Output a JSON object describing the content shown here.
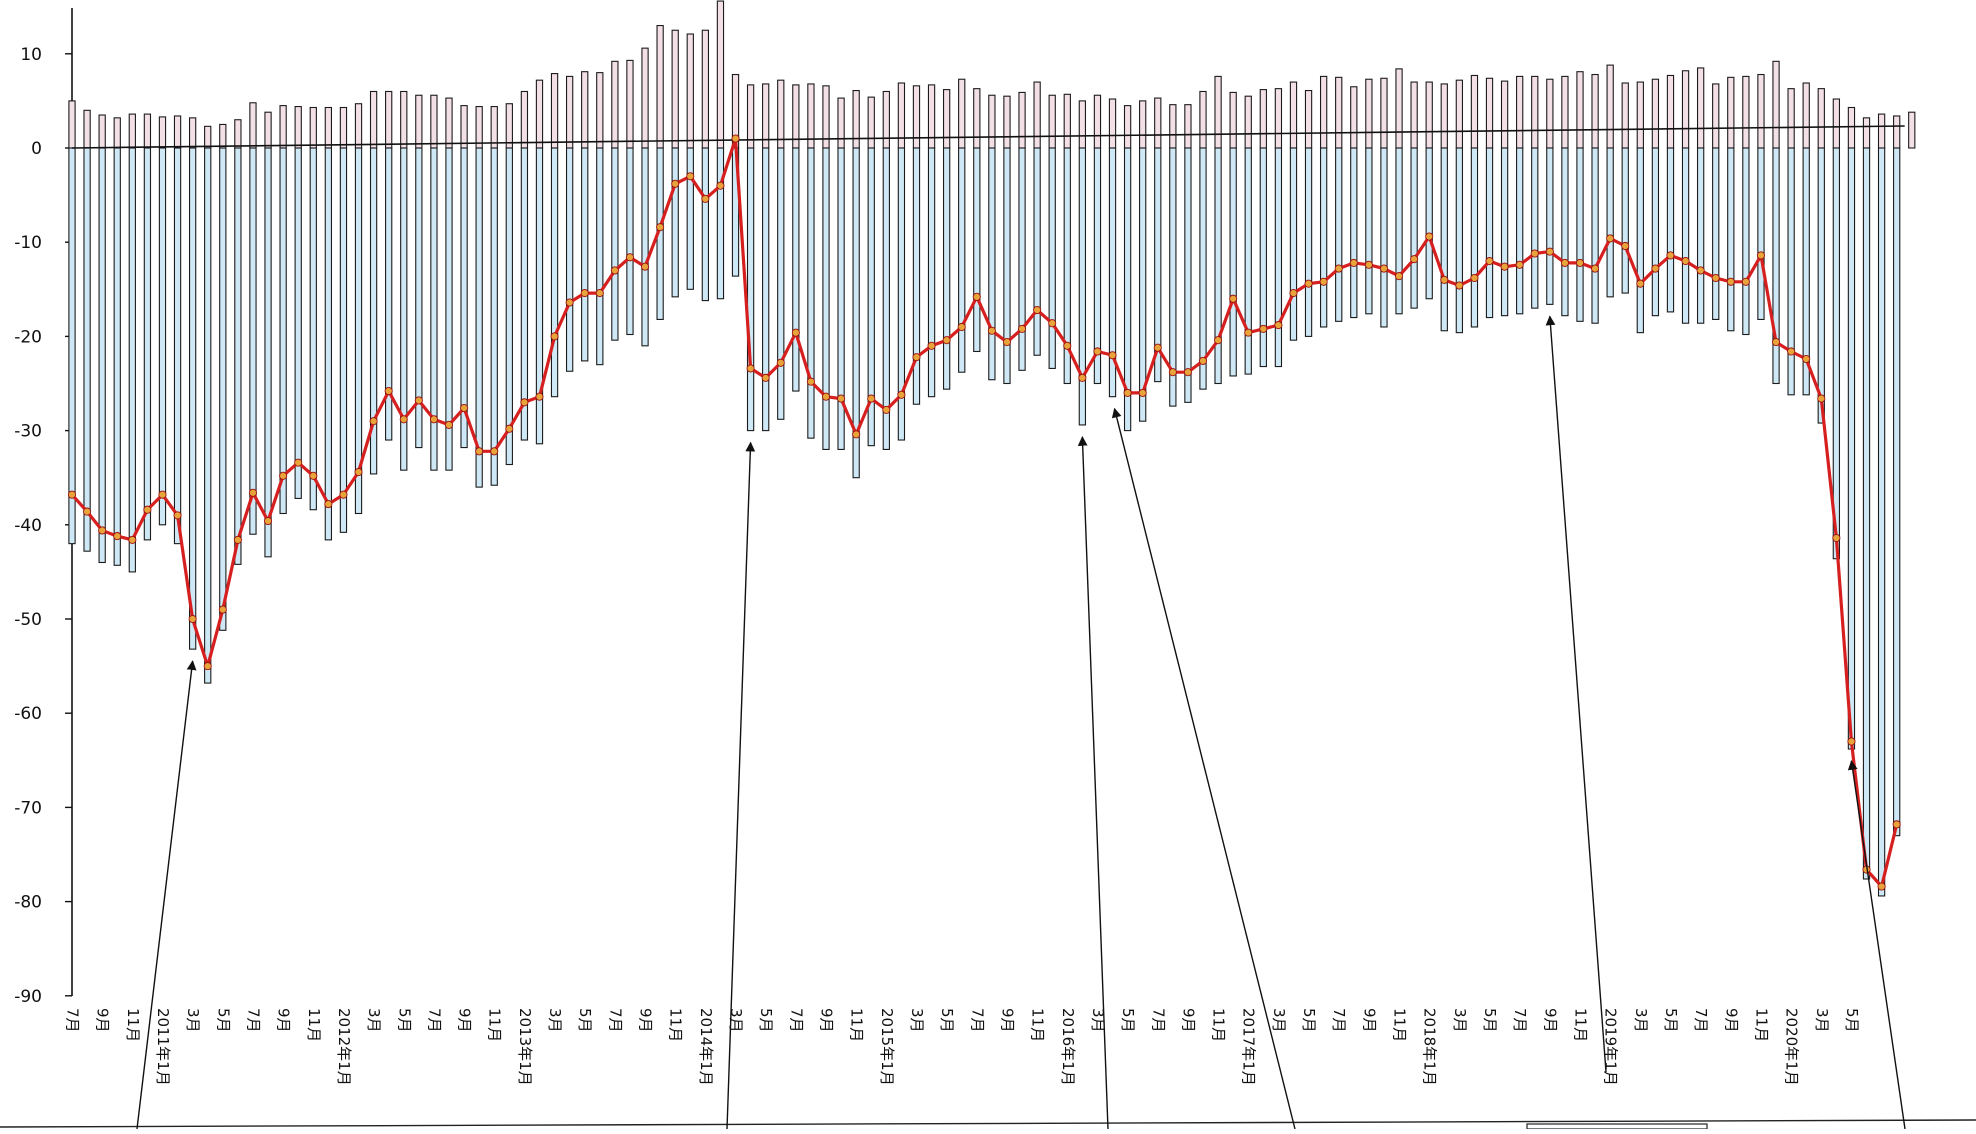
{
  "chart_data": {
    "type": "bar",
    "title": "",
    "xlabel": "",
    "ylabel": "",
    "ylim": [
      -90,
      15
    ],
    "y_ticks": [
      10,
      0,
      -10,
      -20,
      -30,
      -40,
      -50,
      -60,
      -70,
      -80,
      -90
    ],
    "grid": false,
    "x_tick_labels": [
      {
        "i": 0,
        "text": "7月"
      },
      {
        "i": 2,
        "text": "9月"
      },
      {
        "i": 4,
        "text": "11月"
      },
      {
        "i": 6,
        "text": "2011年1月"
      },
      {
        "i": 8,
        "text": "3月"
      },
      {
        "i": 10,
        "text": "5月"
      },
      {
        "i": 12,
        "text": "7月"
      },
      {
        "i": 14,
        "text": "9月"
      },
      {
        "i": 16,
        "text": "11月"
      },
      {
        "i": 18,
        "text": "2012年1月"
      },
      {
        "i": 20,
        "text": "3月"
      },
      {
        "i": 22,
        "text": "5月"
      },
      {
        "i": 24,
        "text": "7月"
      },
      {
        "i": 26,
        "text": "9月"
      },
      {
        "i": 28,
        "text": "11月"
      },
      {
        "i": 30,
        "text": "2013年1月"
      },
      {
        "i": 32,
        "text": "3月"
      },
      {
        "i": 34,
        "text": "5月"
      },
      {
        "i": 36,
        "text": "7月"
      },
      {
        "i": 38,
        "text": "9月"
      },
      {
        "i": 40,
        "text": "11月"
      },
      {
        "i": 42,
        "text": "2014年1月"
      },
      {
        "i": 44,
        "text": "3月"
      },
      {
        "i": 46,
        "text": "5月"
      },
      {
        "i": 48,
        "text": "7月"
      },
      {
        "i": 50,
        "text": "9月"
      },
      {
        "i": 52,
        "text": "11月"
      },
      {
        "i": 54,
        "text": "2015年1月"
      },
      {
        "i": 56,
        "text": "3月"
      },
      {
        "i": 58,
        "text": "5月"
      },
      {
        "i": 60,
        "text": "7月"
      },
      {
        "i": 62,
        "text": "9月"
      },
      {
        "i": 64,
        "text": "11月"
      },
      {
        "i": 66,
        "text": "2016年1月"
      },
      {
        "i": 68,
        "text": "3月"
      },
      {
        "i": 70,
        "text": "5月"
      },
      {
        "i": 72,
        "text": "7月"
      },
      {
        "i": 74,
        "text": "9月"
      },
      {
        "i": 76,
        "text": "11月"
      },
      {
        "i": 78,
        "text": "2017年1月"
      },
      {
        "i": 80,
        "text": "3月"
      },
      {
        "i": 82,
        "text": "5月"
      },
      {
        "i": 84,
        "text": "7月"
      },
      {
        "i": 86,
        "text": "9月"
      },
      {
        "i": 88,
        "text": "11月"
      },
      {
        "i": 90,
        "text": "2018年1月"
      },
      {
        "i": 92,
        "text": "3月"
      },
      {
        "i": 94,
        "text": "5月"
      },
      {
        "i": 96,
        "text": "7月"
      },
      {
        "i": 98,
        "text": "9月"
      },
      {
        "i": 100,
        "text": "11月"
      },
      {
        "i": 102,
        "text": "2019年1月"
      },
      {
        "i": 104,
        "text": "3月"
      },
      {
        "i": 106,
        "text": "5月"
      },
      {
        "i": 108,
        "text": "7月"
      },
      {
        "i": 110,
        "text": "9月"
      },
      {
        "i": 112,
        "text": "11月"
      },
      {
        "i": 114,
        "text": "2020年1月"
      },
      {
        "i": 116,
        "text": "3月"
      },
      {
        "i": 118,
        "text": "5月"
      }
    ],
    "series": [
      {
        "name": "",
        "kind": "bar-positive",
        "color": "#f3e0e6",
        "values": [
          5.0,
          4.0,
          3.5,
          3.2,
          3.6,
          3.6,
          3.3,
          3.4,
          3.2,
          2.3,
          2.5,
          3.0,
          4.8,
          3.8,
          4.5,
          4.4,
          4.3,
          4.3,
          4.3,
          4.7,
          6.0,
          6.0,
          6.0,
          5.6,
          5.6,
          5.3,
          4.5,
          4.4,
          4.4,
          4.7,
          6.0,
          7.2,
          7.9,
          7.6,
          8.1,
          8.0,
          9.2,
          9.3,
          10.6,
          13.0,
          12.5,
          12.1,
          12.5,
          15.6,
          7.8,
          6.7,
          6.8,
          7.2,
          6.7,
          6.8,
          6.6,
          5.3,
          6.1,
          5.4,
          6.0,
          6.9,
          6.6,
          6.7,
          6.2,
          7.3,
          6.3,
          5.6,
          5.5,
          5.9,
          7.0,
          5.6,
          5.7,
          5.0,
          5.6,
          5.2,
          4.5,
          5.0,
          5.3,
          4.6,
          4.6,
          6.0,
          7.6,
          5.9,
          5.5,
          6.2,
          6.3,
          7.0,
          6.1,
          7.6,
          7.5,
          6.5,
          7.3,
          7.4,
          8.4,
          7.0,
          7.0,
          6.8,
          7.2,
          7.7,
          7.4,
          7.1,
          7.6,
          7.6,
          7.3,
          7.6,
          8.1,
          7.8,
          8.8,
          6.9,
          7.0,
          7.3,
          7.7,
          8.2,
          8.5,
          6.8,
          7.5,
          7.6,
          7.8,
          9.2,
          6.3,
          6.9,
          6.3,
          5.2,
          4.3,
          3.2,
          3.6,
          3.4,
          3.8
        ]
      },
      {
        "name": "",
        "kind": "bar-negative",
        "color": "#cfe8f6",
        "values": [
          -42.0,
          -42.8,
          -44.0,
          -44.3,
          -45.0,
          -41.6,
          -40.0,
          -42.0,
          -53.2,
          -56.8,
          -51.2,
          -44.2,
          -41.0,
          -43.4,
          -38.8,
          -37.2,
          -38.4,
          -41.6,
          -40.8,
          -38.8,
          -34.6,
          -31.0,
          -34.2,
          -31.8,
          -34.2,
          -34.2,
          -31.8,
          -36.0,
          -35.8,
          -33.6,
          -31.0,
          -31.4,
          -26.4,
          -23.7,
          -22.6,
          -23.0,
          -20.4,
          -19.8,
          -21.0,
          -18.2,
          -15.8,
          -15.0,
          -16.2,
          -16.0,
          -13.6,
          -30.0,
          -30.0,
          -28.8,
          -25.8,
          -30.8,
          -32.0,
          -32.0,
          -35.0,
          -31.6,
          -32.0,
          -31.0,
          -27.2,
          -26.4,
          -25.6,
          -23.8,
          -21.6,
          -24.6,
          -25.0,
          -23.6,
          -22.0,
          -23.4,
          -25.0,
          -29.4,
          -25.0,
          -26.4,
          -30.0,
          -29.0,
          -24.8,
          -27.4,
          -27.0,
          -25.6,
          -25.0,
          -24.2,
          -24.0,
          -23.2,
          -23.2,
          -20.4,
          -20.0,
          -19.0,
          -18.4,
          -18.0,
          -17.6,
          -19.0,
          -17.6,
          -17.0,
          -16.0,
          -19.4,
          -19.6,
          -19.0,
          -18.0,
          -17.8,
          -17.6,
          -17.0,
          -16.6,
          -17.8,
          -18.4,
          -18.6,
          -15.8,
          -15.4,
          -19.6,
          -17.8,
          -17.4,
          -18.6,
          -18.6,
          -18.2,
          -19.4,
          -19.8,
          -18.2,
          -25.0,
          -26.2,
          -26.2,
          -29.2,
          -43.6,
          -63.8,
          -77.6,
          -79.4,
          -73.0
        ]
      },
      {
        "name": "",
        "kind": "line",
        "color": "#d62020",
        "marker_color": "#e8a33a",
        "values": [
          -36.8,
          -38.6,
          -40.6,
          -41.2,
          -41.6,
          -38.4,
          -36.8,
          -39.0,
          -50.0,
          -55.0,
          -49.0,
          -41.6,
          -36.6,
          -39.6,
          -34.8,
          -33.4,
          -34.8,
          -37.8,
          -36.8,
          -34.4,
          -29.0,
          -25.8,
          -28.8,
          -26.8,
          -28.8,
          -29.4,
          -27.6,
          -32.2,
          -32.2,
          -29.8,
          -27.0,
          -26.4,
          -20.0,
          -16.4,
          -15.4,
          -15.4,
          -13.0,
          -11.6,
          -12.6,
          -8.4,
          -3.8,
          -3.0,
          -5.4,
          -4.0,
          1.0,
          -23.4,
          -24.4,
          -22.8,
          -19.6,
          -24.8,
          -26.4,
          -26.6,
          -30.4,
          -26.6,
          -27.8,
          -26.2,
          -22.2,
          -21.0,
          -20.4,
          -19.0,
          -15.8,
          -19.4,
          -20.6,
          -19.2,
          -17.2,
          -18.6,
          -21.0,
          -24.4,
          -21.6,
          -22.0,
          -26.0,
          -26.0,
          -21.2,
          -23.8,
          -23.8,
          -22.6,
          -20.4,
          -16.0,
          -19.6,
          -19.2,
          -18.8,
          -15.4,
          -14.4,
          -14.2,
          -12.8,
          -12.2,
          -12.4,
          -12.8,
          -13.6,
          -11.8,
          -9.4,
          -14.0,
          -14.6,
          -13.8,
          -12.0,
          -12.6,
          -12.4,
          -11.2,
          -11.0,
          -12.2,
          -12.2,
          -12.8,
          -9.6,
          -10.4,
          -14.4,
          -12.8,
          -11.4,
          -12.0,
          -13.0,
          -13.8,
          -14.2,
          -14.2,
          -11.4,
          -20.6,
          -21.6,
          -22.4,
          -26.6,
          -41.4,
          -63.0,
          -76.6,
          -78.4,
          -71.8
        ]
      }
    ],
    "annotations": [
      {
        "type": "arrow",
        "points_to_index": 8
      },
      {
        "type": "arrow",
        "points_to_index": 45
      },
      {
        "type": "arrow",
        "points_to_index": 67
      },
      {
        "type": "arrow",
        "points_to_index": 69
      },
      {
        "type": "arrow",
        "points_to_index": 98
      },
      {
        "type": "arrow",
        "points_to_index": 118
      }
    ]
  }
}
